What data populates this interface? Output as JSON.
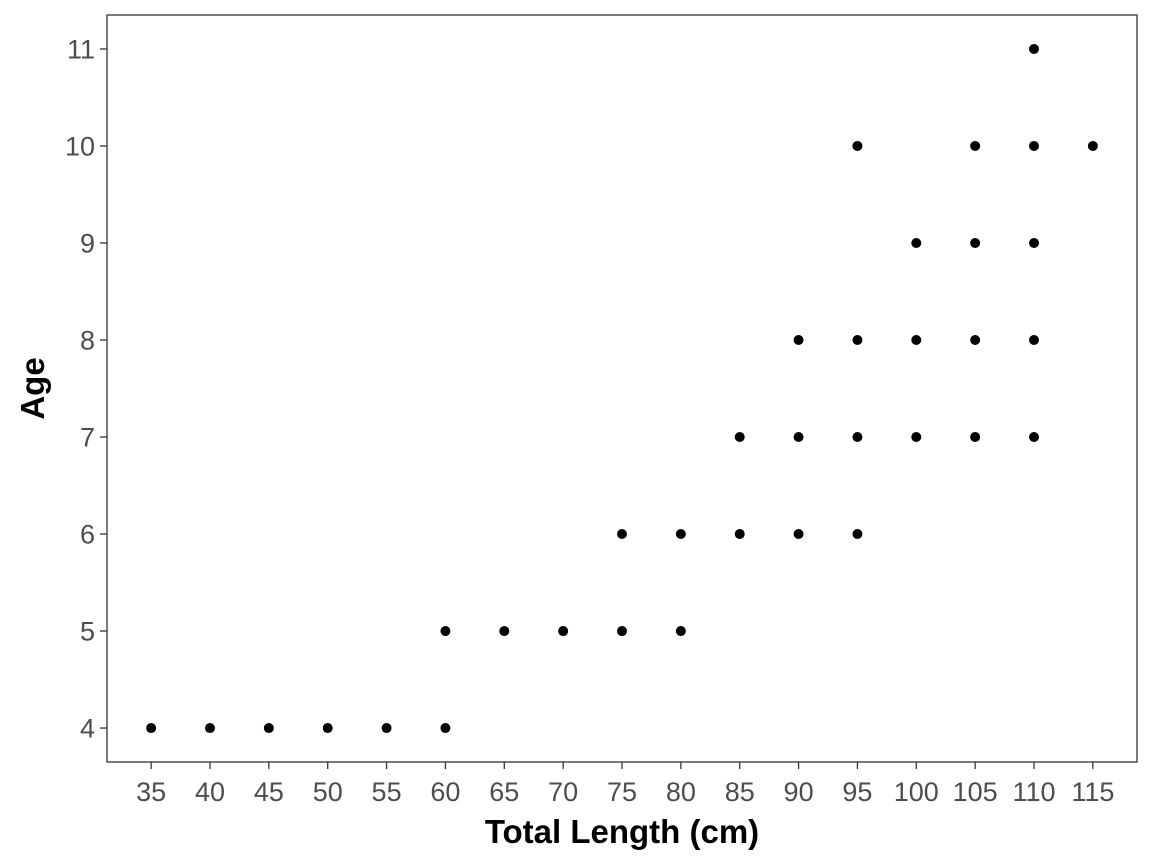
{
  "chart_data": {
    "type": "scatter",
    "title": "",
    "xlabel": "Total Length (cm)",
    "ylabel": "Age",
    "xlim": [
      31.25,
      118.75
    ],
    "ylim": [
      3.65,
      11.35
    ],
    "x_ticks": [
      35,
      40,
      45,
      50,
      55,
      60,
      65,
      70,
      75,
      80,
      85,
      90,
      95,
      100,
      105,
      110,
      115
    ],
    "y_ticks": [
      4,
      5,
      6,
      7,
      8,
      9,
      10,
      11
    ],
    "grid": false,
    "legend": "none",
    "point_color": "#000000",
    "points": [
      {
        "x": 35,
        "y": 4
      },
      {
        "x": 40,
        "y": 4
      },
      {
        "x": 45,
        "y": 4
      },
      {
        "x": 50,
        "y": 4
      },
      {
        "x": 55,
        "y": 4
      },
      {
        "x": 60,
        "y": 4
      },
      {
        "x": 60,
        "y": 5
      },
      {
        "x": 65,
        "y": 5
      },
      {
        "x": 70,
        "y": 5
      },
      {
        "x": 75,
        "y": 5
      },
      {
        "x": 80,
        "y": 5
      },
      {
        "x": 75,
        "y": 6
      },
      {
        "x": 80,
        "y": 6
      },
      {
        "x": 85,
        "y": 6
      },
      {
        "x": 90,
        "y": 6
      },
      {
        "x": 95,
        "y": 6
      },
      {
        "x": 85,
        "y": 7
      },
      {
        "x": 90,
        "y": 7
      },
      {
        "x": 95,
        "y": 7
      },
      {
        "x": 100,
        "y": 7
      },
      {
        "x": 105,
        "y": 7
      },
      {
        "x": 110,
        "y": 7
      },
      {
        "x": 90,
        "y": 8
      },
      {
        "x": 95,
        "y": 8
      },
      {
        "x": 100,
        "y": 8
      },
      {
        "x": 105,
        "y": 8
      },
      {
        "x": 110,
        "y": 8
      },
      {
        "x": 100,
        "y": 9
      },
      {
        "x": 105,
        "y": 9
      },
      {
        "x": 110,
        "y": 9
      },
      {
        "x": 95,
        "y": 10
      },
      {
        "x": 105,
        "y": 10
      },
      {
        "x": 110,
        "y": 10
      },
      {
        "x": 115,
        "y": 10
      },
      {
        "x": 110,
        "y": 11
      }
    ]
  }
}
